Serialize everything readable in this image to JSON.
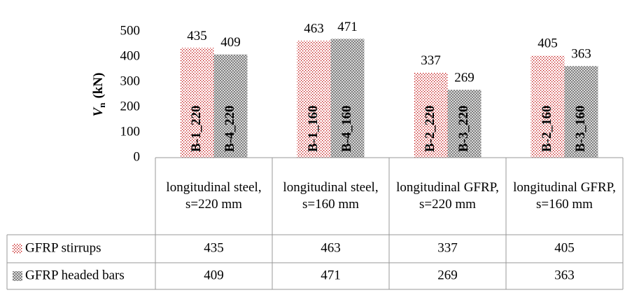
{
  "chart_data": {
    "type": "bar",
    "ylabel": {
      "symbol": "V",
      "subscript": "n",
      "unit": "(kN)"
    },
    "categories": [
      "longitudinal steel, s=220 mm",
      "longitudinal steel, s=160 mm",
      "longitudinal GFRP, s=220 mm",
      "longitudinal GFRP, s=160 mm"
    ],
    "series": [
      {
        "name": "GFRP stirrups",
        "color": "#c00000",
        "values": [
          435,
          463,
          337,
          405
        ],
        "bar_labels": [
          "B-1_220",
          "B-1_160",
          "B-2_220",
          "B-2_160"
        ]
      },
      {
        "name": "GFRP headed bars",
        "color": "#808080",
        "values": [
          409,
          471,
          269,
          363
        ],
        "bar_labels": [
          "B-4_220",
          "B-4_160",
          "B-3_220",
          "B-3_160"
        ]
      }
    ],
    "ylim": [
      0,
      500
    ],
    "yticks": [
      0,
      100,
      200,
      300,
      400,
      500
    ],
    "grid": false
  }
}
